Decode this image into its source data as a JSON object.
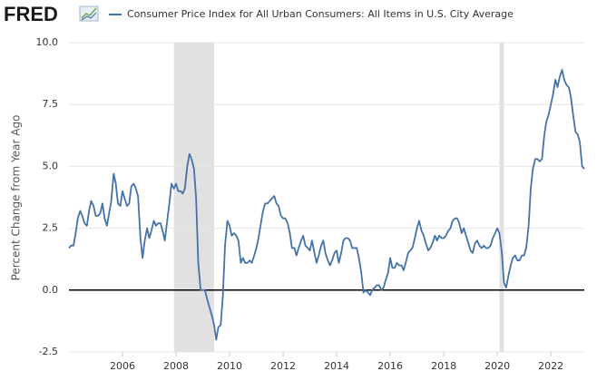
{
  "logo": "FRED",
  "chart_data": {
    "type": "line",
    "y_label": "Percent Change from Year Ago",
    "xlim": [
      2004,
      2023.25
    ],
    "xticks": [
      2006,
      2008,
      2010,
      2012,
      2014,
      2016,
      2018,
      2020,
      2022
    ],
    "ylim": [
      -2.5,
      10
    ],
    "yticks": [
      {
        "value": -2.5,
        "label": "-2.5"
      },
      {
        "value": 0,
        "label": "0.0"
      },
      {
        "value": 2.5,
        "label": "2.5"
      },
      {
        "value": 5,
        "label": "5.0"
      },
      {
        "value": 7.5,
        "label": "7.5"
      },
      {
        "value": 10,
        "label": "10.0"
      }
    ],
    "grid": true,
    "shade_color": "#e1e1e1",
    "shaded_regions": [
      [
        2007.92,
        2009.42
      ],
      [
        2020.08,
        2020.25
      ]
    ],
    "x": [
      2004.0,
      2004.08,
      2004.17,
      2004.25,
      2004.33,
      2004.42,
      2004.5,
      2004.58,
      2004.67,
      2004.75,
      2004.83,
      2004.92,
      2005.0,
      2005.08,
      2005.17,
      2005.25,
      2005.33,
      2005.42,
      2005.5,
      2005.58,
      2005.67,
      2005.75,
      2005.83,
      2005.92,
      2006.0,
      2006.08,
      2006.17,
      2006.25,
      2006.33,
      2006.42,
      2006.5,
      2006.58,
      2006.67,
      2006.75,
      2006.83,
      2006.92,
      2007.0,
      2007.08,
      2007.17,
      2007.25,
      2007.33,
      2007.42,
      2007.5,
      2007.58,
      2007.67,
      2007.75,
      2007.83,
      2007.92,
      2008.0,
      2008.08,
      2008.17,
      2008.25,
      2008.33,
      2008.42,
      2008.5,
      2008.58,
      2008.67,
      2008.75,
      2008.83,
      2008.92,
      2009.0,
      2009.08,
      2009.17,
      2009.25,
      2009.33,
      2009.42,
      2009.5,
      2009.58,
      2009.67,
      2009.75,
      2009.83,
      2009.92,
      2010.0,
      2010.08,
      2010.17,
      2010.25,
      2010.33,
      2010.42,
      2010.5,
      2010.58,
      2010.67,
      2010.75,
      2010.83,
      2010.92,
      2011.0,
      2011.08,
      2011.17,
      2011.25,
      2011.33,
      2011.42,
      2011.5,
      2011.58,
      2011.67,
      2011.75,
      2011.83,
      2011.92,
      2012.0,
      2012.08,
      2012.17,
      2012.25,
      2012.33,
      2012.42,
      2012.5,
      2012.58,
      2012.67,
      2012.75,
      2012.83,
      2012.92,
      2013.0,
      2013.08,
      2013.17,
      2013.25,
      2013.33,
      2013.42,
      2013.5,
      2013.58,
      2013.67,
      2013.75,
      2013.83,
      2013.92,
      2014.0,
      2014.08,
      2014.17,
      2014.25,
      2014.33,
      2014.42,
      2014.5,
      2014.58,
      2014.67,
      2014.75,
      2014.83,
      2014.92,
      2015.0,
      2015.08,
      2015.17,
      2015.25,
      2015.33,
      2015.42,
      2015.5,
      2015.58,
      2015.67,
      2015.75,
      2015.83,
      2015.92,
      2016.0,
      2016.08,
      2016.17,
      2016.25,
      2016.33,
      2016.42,
      2016.5,
      2016.58,
      2016.67,
      2016.75,
      2016.83,
      2016.92,
      2017.0,
      2017.08,
      2017.17,
      2017.25,
      2017.33,
      2017.42,
      2017.5,
      2017.58,
      2017.67,
      2017.75,
      2017.83,
      2017.92,
      2018.0,
      2018.08,
      2018.17,
      2018.25,
      2018.33,
      2018.42,
      2018.5,
      2018.58,
      2018.67,
      2018.75,
      2018.83,
      2018.92,
      2019.0,
      2019.08,
      2019.17,
      2019.25,
      2019.33,
      2019.42,
      2019.5,
      2019.58,
      2019.67,
      2019.75,
      2019.83,
      2019.92,
      2020.0,
      2020.08,
      2020.17,
      2020.25,
      2020.33,
      2020.42,
      2020.5,
      2020.58,
      2020.67,
      2020.75,
      2020.83,
      2020.92,
      2021.0,
      2021.08,
      2021.17,
      2021.25,
      2021.33,
      2021.42,
      2021.5,
      2021.58,
      2021.67,
      2021.75,
      2021.83,
      2021.92,
      2022.0,
      2022.08,
      2022.17,
      2022.25,
      2022.33,
      2022.42,
      2022.5,
      2022.58,
      2022.67,
      2022.75,
      2022.83,
      2022.92,
      2023.0,
      2023.08,
      2023.17,
      2023.25
    ],
    "series": [
      {
        "name": "Consumer Price Index for All Urban Consumers: All Items in U.S. City Average",
        "color": "#4572a7",
        "values": [
          1.7,
          1.8,
          1.8,
          2.3,
          2.9,
          3.2,
          3.0,
          2.7,
          2.6,
          3.2,
          3.6,
          3.4,
          3.0,
          3.0,
          3.1,
          3.5,
          2.9,
          2.6,
          3.1,
          3.6,
          4.7,
          4.3,
          3.5,
          3.4,
          4.0,
          3.7,
          3.4,
          3.5,
          4.2,
          4.3,
          4.1,
          3.8,
          2.1,
          1.3,
          2.0,
          2.5,
          2.1,
          2.4,
          2.8,
          2.6,
          2.7,
          2.7,
          2.4,
          2.0,
          2.8,
          3.5,
          4.3,
          4.1,
          4.3,
          4.0,
          4.0,
          3.9,
          4.1,
          5.0,
          5.5,
          5.3,
          4.9,
          3.7,
          1.1,
          0.0,
          0.0,
          0.0,
          -0.4,
          -0.7,
          -1.0,
          -1.4,
          -2.0,
          -1.5,
          -1.4,
          -0.2,
          1.8,
          2.8,
          2.6,
          2.2,
          2.3,
          2.2,
          2.0,
          1.1,
          1.3,
          1.1,
          1.1,
          1.2,
          1.1,
          1.4,
          1.7,
          2.1,
          2.7,
          3.2,
          3.5,
          3.5,
          3.6,
          3.7,
          3.8,
          3.5,
          3.4,
          3.0,
          2.9,
          2.9,
          2.7,
          2.3,
          1.7,
          1.7,
          1.4,
          1.7,
          2.0,
          2.2,
          1.8,
          1.7,
          1.6,
          2.0,
          1.5,
          1.1,
          1.4,
          1.8,
          2.0,
          1.5,
          1.2,
          1.0,
          1.2,
          1.5,
          1.6,
          1.1,
          1.5,
          2.0,
          2.1,
          2.1,
          2.0,
          1.7,
          1.7,
          1.7,
          1.3,
          0.7,
          -0.1,
          0.0,
          -0.1,
          -0.2,
          0.0,
          0.1,
          0.2,
          0.2,
          0.0,
          0.1,
          0.4,
          0.7,
          1.3,
          0.9,
          0.9,
          1.1,
          1.0,
          1.0,
          0.8,
          1.1,
          1.5,
          1.6,
          1.7,
          2.1,
          2.5,
          2.8,
          2.4,
          2.2,
          1.9,
          1.6,
          1.7,
          1.9,
          2.2,
          2.0,
          2.2,
          2.1,
          2.1,
          2.2,
          2.4,
          2.5,
          2.8,
          2.9,
          2.9,
          2.7,
          2.3,
          2.5,
          2.2,
          1.9,
          1.6,
          1.5,
          1.9,
          2.0,
          1.8,
          1.7,
          1.8,
          1.7,
          1.7,
          1.8,
          2.1,
          2.3,
          2.5,
          2.3,
          1.5,
          0.3,
          0.1,
          0.6,
          1.0,
          1.3,
          1.4,
          1.2,
          1.2,
          1.4,
          1.4,
          1.7,
          2.6,
          4.1,
          4.9,
          5.3,
          5.3,
          5.2,
          5.3,
          6.2,
          6.8,
          7.1,
          7.5,
          7.9,
          8.5,
          8.2,
          8.6,
          8.9,
          8.5,
          8.3,
          8.2,
          7.8,
          7.1,
          6.4,
          6.3,
          6.0,
          5.0,
          4.9
        ]
      }
    ]
  }
}
